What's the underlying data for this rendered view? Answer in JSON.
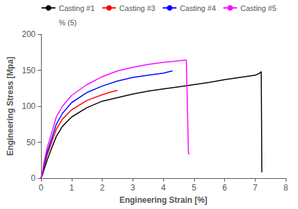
{
  "chart_data": {
    "type": "line",
    "xlabel": "Engineering Strain [%]",
    "ylabel": "Engineering Stress [Mpa]",
    "xlim": [
      0,
      8
    ],
    "ylim": [
      0,
      200
    ],
    "xticks": [
      0,
      1,
      2,
      3,
      4,
      5,
      6,
      7,
      8
    ],
    "yticks": [
      0,
      50,
      100,
      150,
      200
    ],
    "grid": false,
    "legend": "upper left",
    "series": [
      {
        "name": "Casting #1",
        "color": "#000000",
        "x": [
          0,
          0.05,
          0.1,
          0.2,
          0.35,
          0.5,
          0.7,
          1.0,
          1.5,
          2.0,
          2.5,
          3.0,
          3.5,
          4.0,
          4.5,
          5.0,
          5.5,
          6.0,
          6.5,
          7.0,
          7.15,
          7.2,
          7.22
        ],
        "values": [
          0,
          5,
          12,
          25,
          42,
          58,
          72,
          85,
          98,
          107,
          112,
          117,
          121,
          124,
          127,
          130,
          133,
          137,
          140,
          143,
          146,
          148,
          8
        ]
      },
      {
        "name": "Casting #3",
        "color": "#ff0000",
        "x": [
          0,
          0.05,
          0.1,
          0.2,
          0.35,
          0.5,
          0.7,
          1.0,
          1.5,
          2.0,
          2.3,
          2.5
        ],
        "values": [
          0,
          7,
          16,
          32,
          50,
          68,
          82,
          95,
          108,
          116,
          120,
          122
        ]
      },
      {
        "name": "Casting #4",
        "color": "#0000ff",
        "x": [
          0,
          0.05,
          0.1,
          0.2,
          0.35,
          0.5,
          0.7,
          1.0,
          1.5,
          2.0,
          2.5,
          3.0,
          3.5,
          4.0,
          4.2,
          4.3
        ],
        "values": [
          0,
          8,
          18,
          36,
          55,
          75,
          90,
          105,
          119,
          128,
          135,
          140,
          143,
          146,
          148,
          149
        ]
      },
      {
        "name": "Casting #5",
        "color": "#ff00ff",
        "x": [
          0,
          0.05,
          0.1,
          0.2,
          0.35,
          0.5,
          0.7,
          1.0,
          1.5,
          2.0,
          2.5,
          3.0,
          3.5,
          4.0,
          4.5,
          4.7,
          4.75,
          4.75,
          4.82,
          4.85
        ],
        "values": [
          0,
          10,
          22,
          42,
          63,
          85,
          100,
          115,
          130,
          141,
          149,
          154,
          158,
          161,
          163,
          164,
          164,
          164,
          35,
          33
        ]
      },
      {
        "name": "% (5)",
        "color": "#ff00ff",
        "line_style": "none",
        "x": [],
        "values": []
      }
    ]
  }
}
